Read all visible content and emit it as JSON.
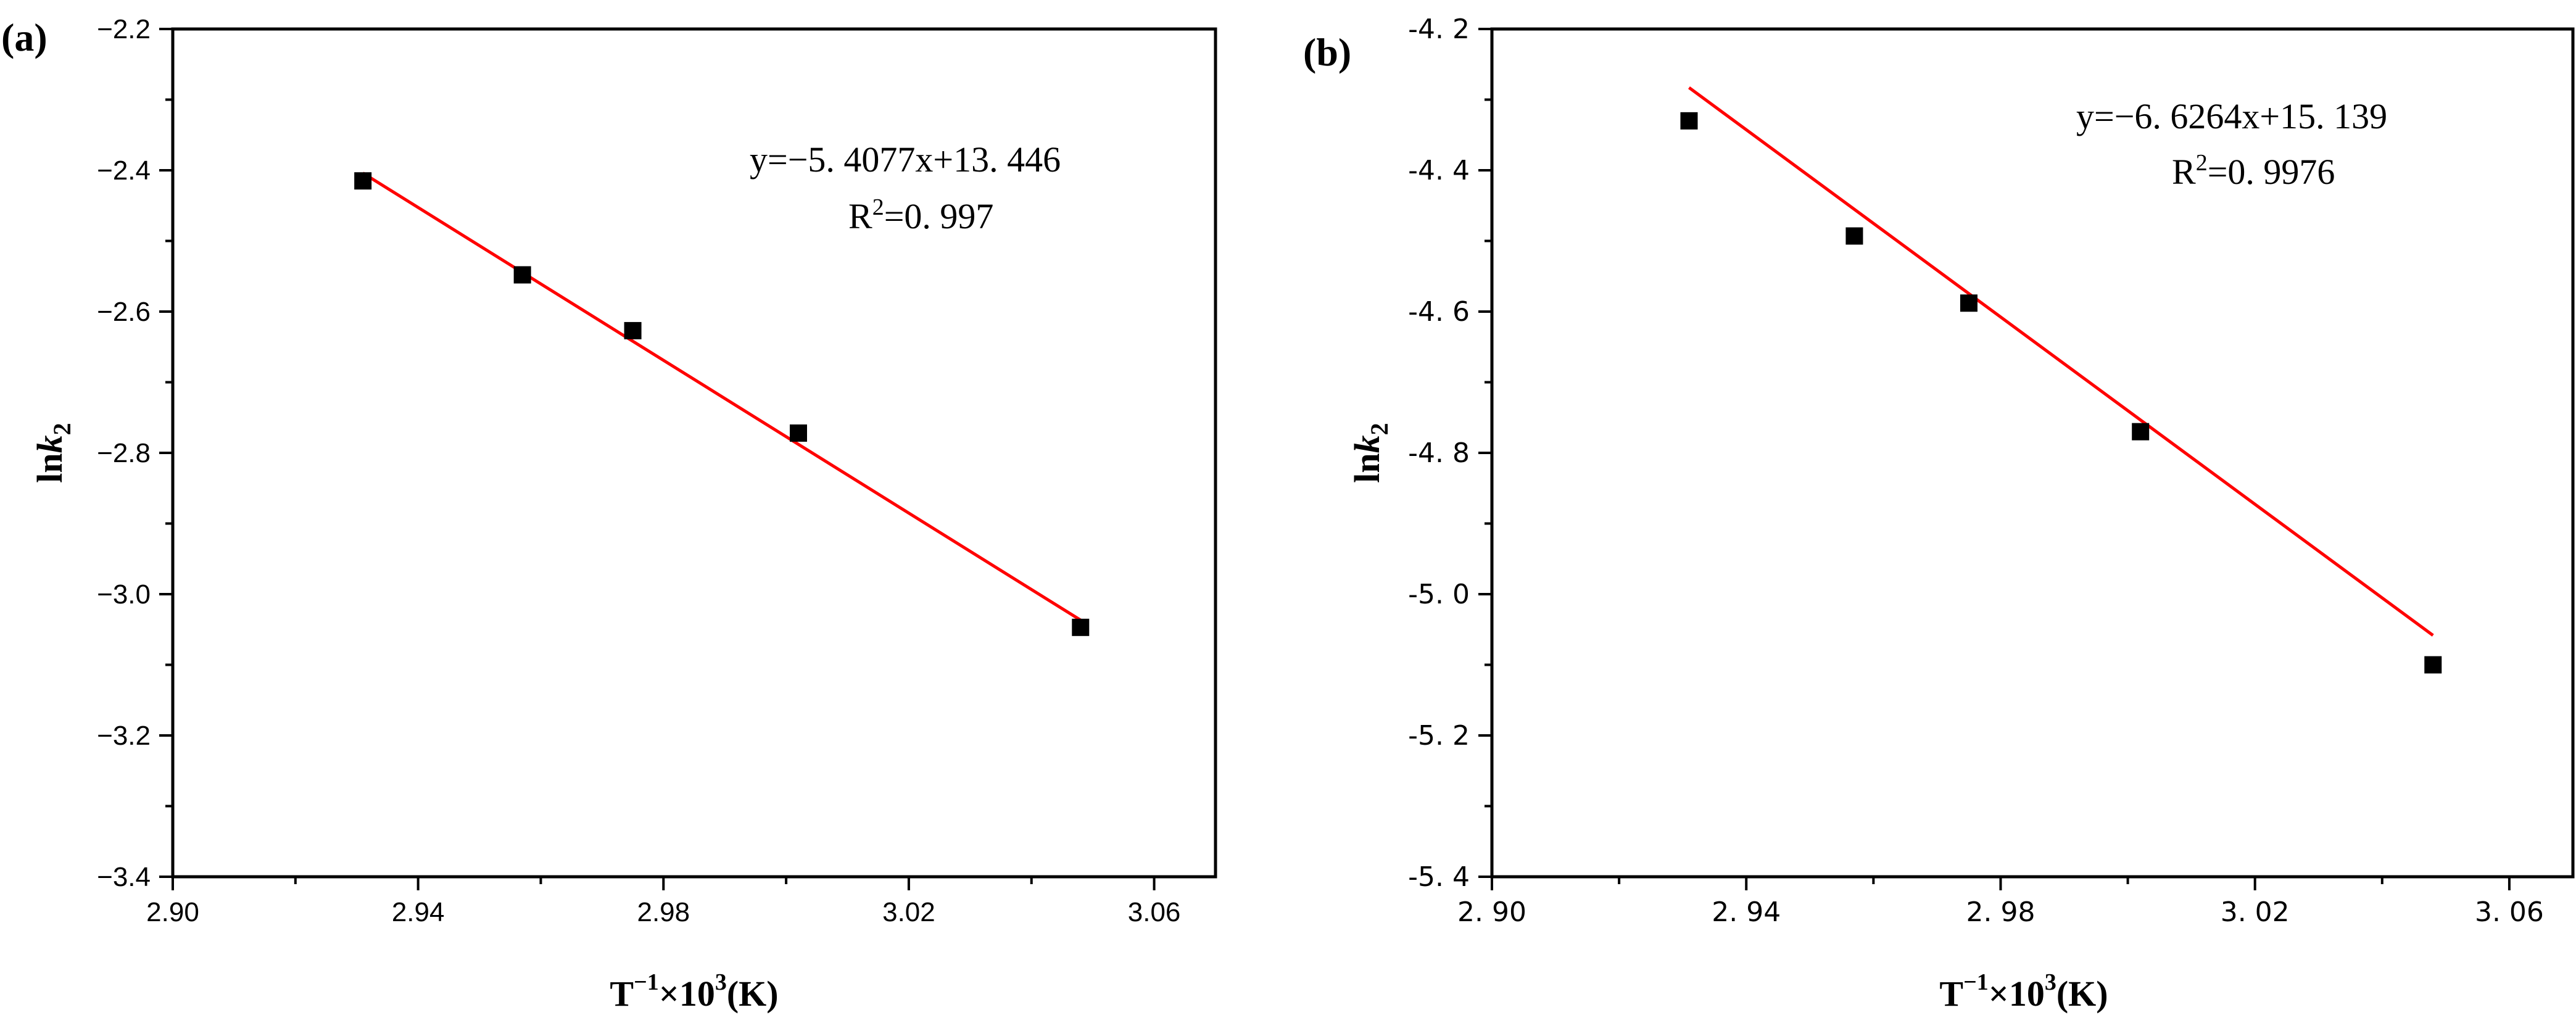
{
  "chart_data": [
    {
      "type": "scatter",
      "panel_label": "(a)",
      "xlabel": "T⁻¹×10³(K)",
      "ylabel_main": "ln",
      "ylabel_italic": "k",
      "ylabel_sub": "2",
      "xlim": [
        2.9,
        3.07
      ],
      "ylim": [
        -3.4,
        -2.2
      ],
      "xticks": [
        2.9,
        2.94,
        2.98,
        3.02,
        3.06
      ],
      "xtick_labels": [
        "2.90",
        "2.94",
        "2.98",
        "3.02",
        "3.06"
      ],
      "yticks": [
        -3.4,
        -3.2,
        -3.0,
        -2.8,
        -2.6,
        -2.4,
        -2.2
      ],
      "ytick_labels": [
        "−3.4",
        "−3.2",
        "−3.0",
        "−2.8",
        "−2.6",
        "−2.4",
        "−2.2"
      ],
      "points": [
        {
          "x": 2.931,
          "y": -2.415
        },
        {
          "x": 2.957,
          "y": -2.548
        },
        {
          "x": 2.975,
          "y": -2.627
        },
        {
          "x": 3.002,
          "y": -2.772
        },
        {
          "x": 3.048,
          "y": -3.047
        }
      ],
      "fit": {
        "x_start": 2.931,
        "x_end": 3.048,
        "slope": -5.4077,
        "intercept": 13.446
      },
      "equation": "y=−5. 4077x+13. 446",
      "r2_prefix": "R",
      "r2_sup": "2",
      "r2_value": "=0. 997",
      "colors": {
        "fit_line": "#ff0000",
        "markers": "#000000"
      }
    },
    {
      "type": "scatter",
      "panel_label": "(b)",
      "xlabel": "T⁻¹×10³(K)",
      "ylabel_main": "ln",
      "ylabel_italic": "k",
      "ylabel_sub": "2",
      "xlim": [
        2.9,
        3.07
      ],
      "ylim": [
        -5.4,
        -4.2
      ],
      "xticks": [
        2.9,
        2.94,
        2.98,
        3.02,
        3.06
      ],
      "xtick_labels": [
        "2. 90",
        "2. 94",
        "2. 98",
        "3. 02",
        "3. 06"
      ],
      "yticks": [
        -5.4,
        -5.2,
        -5.0,
        -4.8,
        -4.6,
        -4.4,
        -4.2
      ],
      "ytick_labels": [
        "-5. 4",
        "-5. 2",
        "-5. 0",
        "-4. 8",
        "-4. 6",
        "-4. 4",
        "-4. 2"
      ],
      "points": [
        {
          "x": 2.931,
          "y": -4.33
        },
        {
          "x": 2.957,
          "y": -4.493
        },
        {
          "x": 2.975,
          "y": -4.588
        },
        {
          "x": 3.002,
          "y": -4.77
        },
        {
          "x": 3.048,
          "y": -5.1
        }
      ],
      "fit": {
        "x_start": 2.931,
        "x_end": 3.048,
        "slope": -6.6264,
        "intercept": 15.139
      },
      "equation": "y=−6. 6264x+15. 139",
      "r2_prefix": "R",
      "r2_sup": "2",
      "r2_value": "=0. 9976",
      "colors": {
        "fit_line": "#ff0000",
        "markers": "#000000"
      }
    }
  ]
}
